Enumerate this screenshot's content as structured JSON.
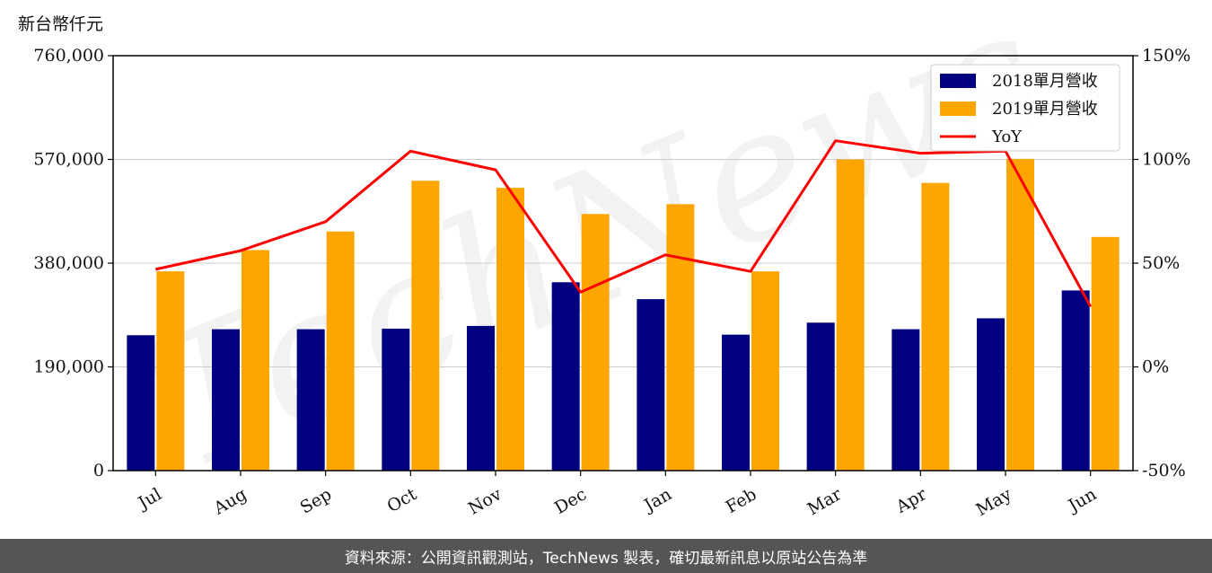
{
  "unit_label": "新台幣仟元",
  "footer_text": "資料來源：公開資訊觀測站，TechNews 製表，確切最新訊息以原站公告為準",
  "watermark": "TechNews",
  "colors": {
    "series_2018": "#000080",
    "series_2019": "#FFA500",
    "yoy_line": "#FF0000",
    "grid": "#cccccc",
    "footer_bg": "#555555"
  },
  "chart_data": {
    "type": "bar",
    "categories": [
      "Jul",
      "Aug",
      "Sep",
      "Oct",
      "Nov",
      "Dec",
      "Jan",
      "Feb",
      "Mar",
      "Apr",
      "May",
      "Jun"
    ],
    "series": [
      {
        "name": "2018單月營收",
        "values": [
          248000,
          259000,
          259000,
          260000,
          265000,
          345000,
          314000,
          249000,
          271000,
          259000,
          279000,
          330000
        ]
      },
      {
        "name": "2019單月營收",
        "values": [
          365000,
          404000,
          438000,
          531000,
          518000,
          470000,
          488000,
          365000,
          570000,
          527000,
          571000,
          428000
        ]
      }
    ],
    "line_series": {
      "name": "YoY",
      "axis": "right",
      "values": [
        47,
        56,
        70,
        104,
        95,
        36,
        54,
        46,
        109,
        103,
        104,
        29
      ]
    },
    "ylim_left": [
      0,
      760000
    ],
    "ylim_right": [
      -50,
      150
    ],
    "yticks_left": [
      "0",
      "190,000",
      "380,000",
      "570,000",
      "760,000"
    ],
    "yticks_right": [
      "-50%",
      "0%",
      "50%",
      "100%",
      "150%"
    ],
    "legend_position": "top-right",
    "grid": "horizontal"
  }
}
